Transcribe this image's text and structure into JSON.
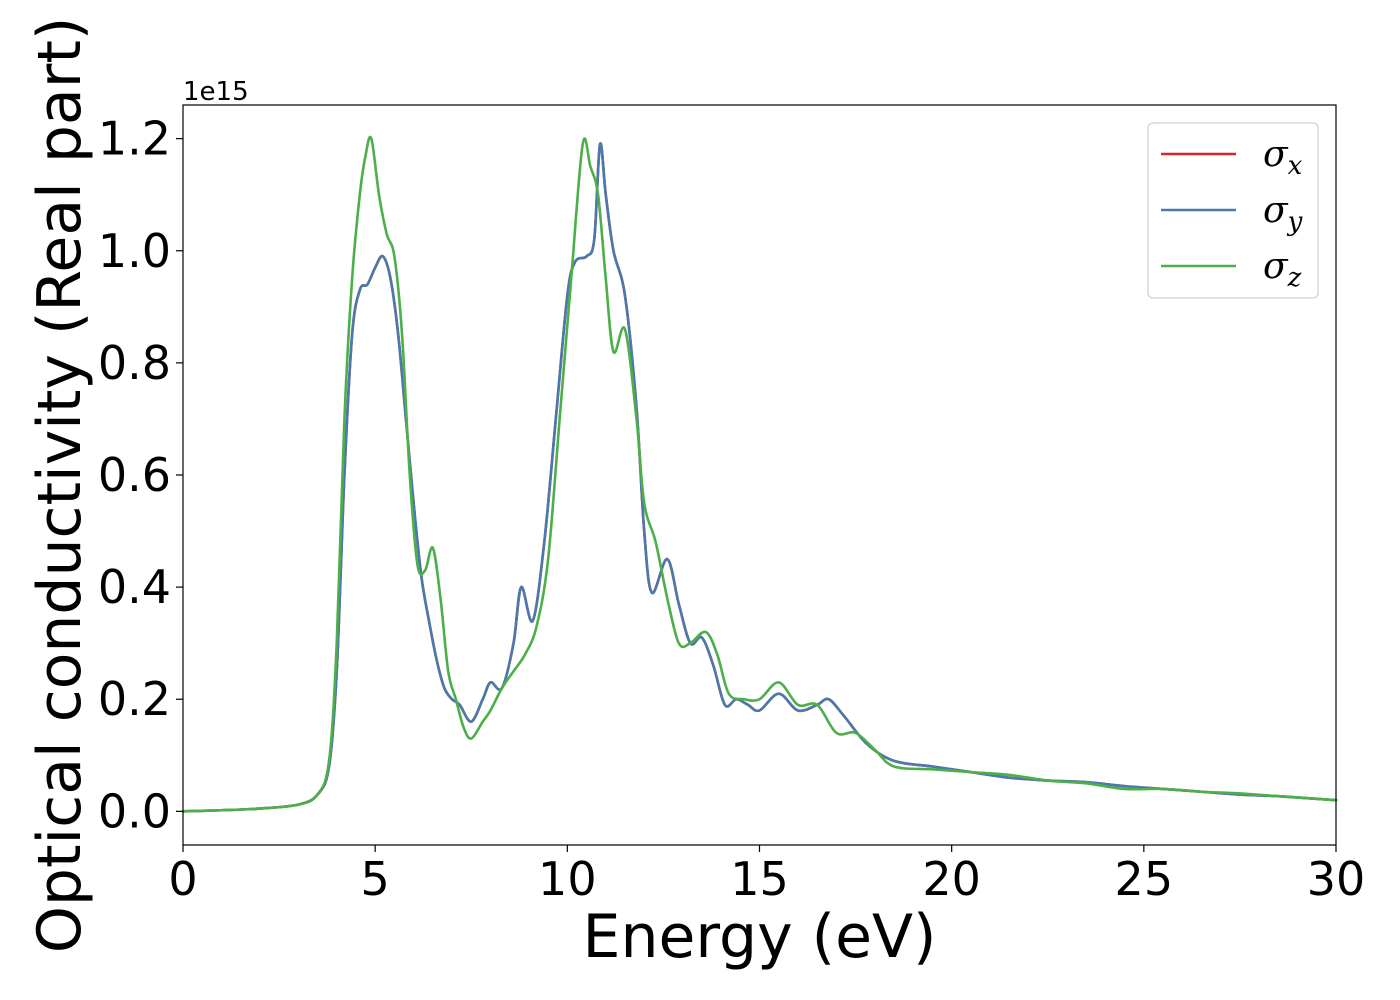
{
  "chart_data": {
    "type": "line",
    "title": "",
    "xlabel": "Energy (eV)",
    "ylabel": "Optical conductivity (Real part)",
    "y_offset_label": "1e15",
    "xlim": [
      0,
      30
    ],
    "ylim": [
      -0.06,
      1.26
    ],
    "x_ticks": [
      0,
      5,
      10,
      15,
      20,
      25,
      30
    ],
    "x_tick_labels": [
      "0",
      "5",
      "10",
      "15",
      "20",
      "25",
      "30"
    ],
    "y_ticks": [
      0.0,
      0.2,
      0.4,
      0.6,
      0.8,
      1.0,
      1.2
    ],
    "y_tick_labels": [
      "0.0",
      "0.2",
      "0.4",
      "0.6",
      "0.8",
      "1.0",
      "1.2"
    ],
    "grid": false,
    "legend_position": "top-right",
    "series": [
      {
        "name": "σx",
        "symbol": "σ",
        "subscript": "x",
        "color": "#d62728",
        "x": [
          0,
          1,
          2,
          3,
          3.5,
          3.8,
          4.0,
          4.2,
          4.4,
          4.6,
          4.8,
          5.0,
          5.2,
          5.4,
          5.6,
          5.8,
          6.0,
          6.2,
          6.4,
          6.6,
          6.8,
          7.0,
          7.2,
          7.5,
          7.8,
          8.0,
          8.3,
          8.6,
          8.8,
          9.1,
          9.4,
          9.7,
          10.0,
          10.2,
          10.5,
          10.7,
          10.85,
          11.0,
          11.2,
          11.5,
          11.8,
          12.0,
          12.2,
          12.6,
          12.9,
          13.2,
          13.5,
          13.8,
          14.1,
          14.4,
          14.7,
          15.0,
          15.5,
          16.0,
          16.5,
          16.8,
          17.2,
          17.8,
          18.5,
          19.5,
          20.5,
          21.5,
          22.5,
          23.5,
          24.5,
          25.5,
          26.5,
          27.5,
          28.5,
          30
        ],
        "y": [
          0,
          0.002,
          0.005,
          0.012,
          0.03,
          0.08,
          0.25,
          0.6,
          0.85,
          0.93,
          0.94,
          0.97,
          0.99,
          0.95,
          0.85,
          0.7,
          0.55,
          0.42,
          0.34,
          0.27,
          0.22,
          0.2,
          0.19,
          0.16,
          0.2,
          0.23,
          0.22,
          0.3,
          0.4,
          0.34,
          0.48,
          0.7,
          0.92,
          0.98,
          0.99,
          1.02,
          1.19,
          1.1,
          1.0,
          0.92,
          0.72,
          0.5,
          0.39,
          0.45,
          0.37,
          0.3,
          0.31,
          0.26,
          0.19,
          0.2,
          0.19,
          0.18,
          0.21,
          0.18,
          0.19,
          0.2,
          0.17,
          0.12,
          0.09,
          0.08,
          0.07,
          0.06,
          0.055,
          0.052,
          0.045,
          0.04,
          0.035,
          0.03,
          0.027,
          0.02
        ]
      },
      {
        "name": "σy",
        "symbol": "σ",
        "subscript": "y",
        "color": "#4a7aad",
        "x": [
          0,
          1,
          2,
          3,
          3.5,
          3.8,
          4.0,
          4.2,
          4.4,
          4.6,
          4.8,
          5.0,
          5.2,
          5.4,
          5.6,
          5.8,
          6.0,
          6.2,
          6.4,
          6.6,
          6.8,
          7.0,
          7.2,
          7.5,
          7.8,
          8.0,
          8.3,
          8.6,
          8.8,
          9.1,
          9.4,
          9.7,
          10.0,
          10.2,
          10.5,
          10.7,
          10.85,
          11.0,
          11.2,
          11.5,
          11.8,
          12.0,
          12.2,
          12.6,
          12.9,
          13.2,
          13.5,
          13.8,
          14.1,
          14.4,
          14.7,
          15.0,
          15.5,
          16.0,
          16.5,
          16.8,
          17.2,
          17.8,
          18.5,
          19.5,
          20.5,
          21.5,
          22.5,
          23.5,
          24.5,
          25.5,
          26.5,
          27.5,
          28.5,
          30
        ],
        "y": [
          0,
          0.002,
          0.005,
          0.012,
          0.03,
          0.08,
          0.25,
          0.6,
          0.85,
          0.93,
          0.94,
          0.97,
          0.99,
          0.95,
          0.85,
          0.7,
          0.55,
          0.42,
          0.34,
          0.27,
          0.22,
          0.2,
          0.19,
          0.16,
          0.2,
          0.23,
          0.22,
          0.3,
          0.4,
          0.34,
          0.48,
          0.7,
          0.92,
          0.98,
          0.99,
          1.02,
          1.19,
          1.1,
          1.0,
          0.92,
          0.72,
          0.5,
          0.39,
          0.45,
          0.37,
          0.3,
          0.31,
          0.26,
          0.19,
          0.2,
          0.19,
          0.18,
          0.21,
          0.18,
          0.19,
          0.2,
          0.17,
          0.12,
          0.09,
          0.08,
          0.07,
          0.06,
          0.055,
          0.052,
          0.045,
          0.04,
          0.035,
          0.03,
          0.027,
          0.02
        ]
      },
      {
        "name": "σz",
        "symbol": "σ",
        "subscript": "z",
        "color": "#4daf4a",
        "x": [
          0,
          1,
          2,
          3,
          3.5,
          3.8,
          4.0,
          4.2,
          4.4,
          4.6,
          4.75,
          4.9,
          5.1,
          5.3,
          5.5,
          5.7,
          5.9,
          6.1,
          6.3,
          6.5,
          6.7,
          6.9,
          7.1,
          7.3,
          7.5,
          7.8,
          8.0,
          8.3,
          8.6,
          8.9,
          9.2,
          9.5,
          9.8,
          10.1,
          10.4,
          10.6,
          10.8,
          11.0,
          11.2,
          11.5,
          11.8,
          12.0,
          12.3,
          12.6,
          12.9,
          13.2,
          13.6,
          13.9,
          14.2,
          14.6,
          15.0,
          15.5,
          16.0,
          16.5,
          17.0,
          17.5,
          18.0,
          18.5,
          19.5,
          20.5,
          21.5,
          22.5,
          23.5,
          24.5,
          25.5,
          26.5,
          27.5,
          28.5,
          30
        ],
        "y": [
          0,
          0.002,
          0.005,
          0.012,
          0.03,
          0.09,
          0.3,
          0.7,
          0.95,
          1.1,
          1.17,
          1.2,
          1.1,
          1.03,
          0.99,
          0.85,
          0.6,
          0.44,
          0.43,
          0.47,
          0.38,
          0.25,
          0.2,
          0.15,
          0.13,
          0.16,
          0.18,
          0.22,
          0.25,
          0.28,
          0.33,
          0.45,
          0.7,
          0.95,
          1.19,
          1.15,
          1.1,
          0.95,
          0.82,
          0.86,
          0.7,
          0.55,
          0.48,
          0.38,
          0.3,
          0.3,
          0.32,
          0.28,
          0.21,
          0.2,
          0.2,
          0.23,
          0.19,
          0.19,
          0.14,
          0.14,
          0.11,
          0.08,
          0.075,
          0.07,
          0.065,
          0.055,
          0.05,
          0.04,
          0.04,
          0.035,
          0.032,
          0.027,
          0.02
        ]
      }
    ]
  }
}
